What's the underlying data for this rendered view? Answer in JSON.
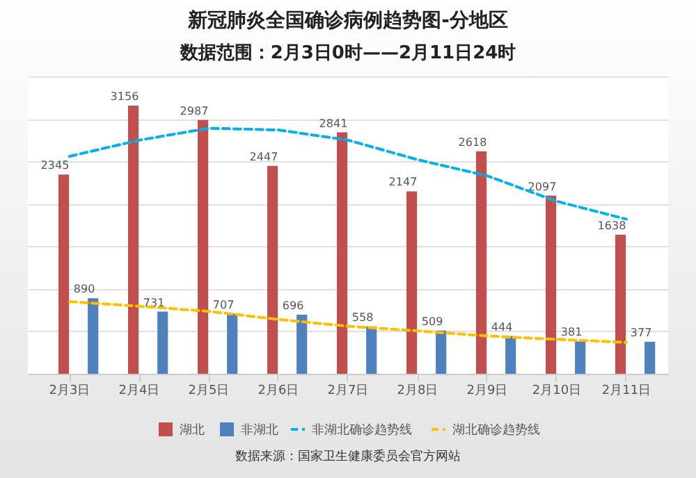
{
  "chart_data": {
    "type": "bar",
    "title": "新冠肺炎全国确诊病例趋势图-分地区",
    "subtitle": "数据范围：2月3日0时——2月11日24时",
    "categories": [
      "2月3日",
      "2月4日",
      "2月5日",
      "2月6日",
      "2月7日",
      "2月8日",
      "2月9日",
      "2月10日",
      "2月11日"
    ],
    "series": [
      {
        "name": "湖北",
        "color": "#c0504d",
        "values": [
          2345,
          3156,
          2987,
          2447,
          2841,
          2147,
          2618,
          2097,
          1638
        ],
        "value_labels": [
          "2345",
          "3156",
          "2987",
          "2447",
          "2841",
          "2147",
          "2618",
          "2097",
          "1638"
        ]
      },
      {
        "name": "非湖北",
        "color": "#4f81bd",
        "values": [
          890,
          731,
          707,
          696,
          558,
          509,
          444,
          381,
          377
        ],
        "value_labels": [
          "890",
          "731",
          "707",
          "696",
          "558",
          "509",
          "444",
          "381",
          "377"
        ]
      },
      {
        "name": "非湖北确诊趋势线",
        "type": "line",
        "line_style": "dashed",
        "color": "#00b0f0",
        "values": [
          2560,
          2750,
          2890,
          2870,
          2750,
          2520,
          2330,
          2030,
          1820
        ]
      },
      {
        "name": "湖北确诊趋势线",
        "type": "line",
        "line_style": "dashed",
        "color": "#ffc000",
        "values": [
          850,
          795,
          735,
          640,
          560,
          505,
          445,
          405,
          370
        ]
      }
    ],
    "ylim": [
      0,
      3500
    ],
    "tick_labels": "x",
    "grid": "y",
    "legend": "bottom",
    "annotations": [
      "数据来源：国家卫生健康委员会官方网站"
    ]
  }
}
